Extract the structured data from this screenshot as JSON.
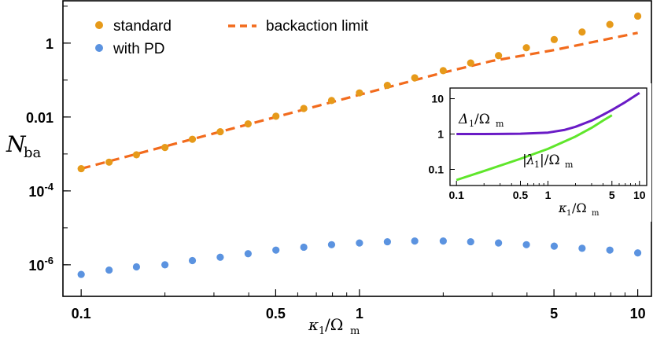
{
  "chart_data": [
    {
      "type": "scatter",
      "xscale": "log",
      "yscale": "log",
      "xlabel": "κ1/Ωm",
      "ylabel": "Nba",
      "xlim": [
        0.086,
        11.2
      ],
      "ylim": [
        1.4e-07,
        14
      ],
      "x_ticks": [
        0.1,
        0.5,
        1,
        5,
        10
      ],
      "x_tick_labels": [
        "0.1",
        "0.5",
        "1",
        "5",
        "10"
      ],
      "y_ticks": [
        1e-06,
        0.0001,
        0.01,
        1
      ],
      "y_tick_labels": [
        {
          "value": 1e-06,
          "mantissa": "10",
          "exp": "-6"
        },
        {
          "value": 0.0001,
          "mantissa": "10",
          "exp": "-4"
        },
        {
          "value": 0.01,
          "mantissa": "0.01",
          "exp": ""
        },
        {
          "value": 1,
          "mantissa": "1",
          "exp": ""
        }
      ],
      "series": [
        {
          "name": "standard",
          "kind": "points",
          "color": "#E69A1A",
          "x": [
            0.1,
            0.126,
            0.158,
            0.2,
            0.251,
            0.316,
            0.398,
            0.501,
            0.631,
            0.794,
            1.0,
            1.26,
            1.58,
            2.0,
            2.51,
            3.16,
            3.98,
            5.01,
            6.31,
            7.94,
            10.0
          ],
          "y": [
            0.0004,
            0.0006,
            0.00095,
            0.0015,
            0.0025,
            0.004,
            0.0065,
            0.0105,
            0.017,
            0.028,
            0.045,
            0.072,
            0.115,
            0.18,
            0.29,
            0.46,
            0.75,
            1.25,
            2.0,
            3.2,
            5.4
          ]
        },
        {
          "name": "with PD",
          "kind": "points",
          "color": "#5B93E0",
          "x": [
            0.1,
            0.126,
            0.158,
            0.2,
            0.251,
            0.316,
            0.398,
            0.501,
            0.631,
            0.794,
            1.0,
            1.26,
            1.58,
            2.0,
            2.51,
            3.16,
            3.98,
            5.01,
            6.31,
            7.94,
            10.0
          ],
          "y": [
            5.5e-07,
            7.2e-07,
            8.8e-07,
            1e-06,
            1.3e-06,
            1.6e-06,
            2e-06,
            2.5e-06,
            3e-06,
            3.5e-06,
            3.9e-06,
            4.2e-06,
            4.4e-06,
            4.4e-06,
            4.2e-06,
            3.9e-06,
            3.5e-06,
            3.2e-06,
            2.8e-06,
            2.5e-06,
            2.1e-06
          ]
        },
        {
          "name": "backaction limit",
          "kind": "dashed-line",
          "color": "#F26B1D",
          "x": [
            0.1,
            0.2,
            0.5,
            1.0,
            2.0,
            3.0,
            5.0,
            10.0
          ],
          "y": [
            0.0004,
            0.0016,
            0.01,
            0.04,
            0.16,
            0.33,
            0.65,
            1.9
          ]
        }
      ],
      "legend": [
        {
          "label": "standard",
          "marker": "dot",
          "color": "#E69A1A"
        },
        {
          "label": "with PD",
          "marker": "dot",
          "color": "#5B93E0"
        },
        {
          "label": "backaction limit",
          "marker": "dash",
          "color": "#F26B1D"
        }
      ]
    },
    {
      "type": "line",
      "role": "inset",
      "xscale": "log",
      "yscale": "log",
      "xlabel": "κ1/Ωm",
      "xlim": [
        0.085,
        12
      ],
      "ylim": [
        0.035,
        20
      ],
      "x_ticks": [
        0.1,
        0.5,
        1,
        5,
        10
      ],
      "x_tick_labels": [
        "0.1",
        "0.5",
        "1",
        "5",
        "10"
      ],
      "y_ticks": [
        0.1,
        1,
        10
      ],
      "y_tick_labels": [
        "0.1",
        "1",
        "10"
      ],
      "series": [
        {
          "name": "Δ1/Ωm",
          "color": "#6A1BC6",
          "x": [
            0.1,
            0.2,
            0.5,
            1,
            1.5,
            2,
            3,
            4,
            5,
            7,
            10
          ],
          "y": [
            1.0,
            1.0,
            1.02,
            1.1,
            1.3,
            1.6,
            2.4,
            3.5,
            4.8,
            8.0,
            14.5
          ]
        },
        {
          "name": "|λ1|/Ωm",
          "color": "#5FE62B",
          "x": [
            0.1,
            0.2,
            0.5,
            1,
            2,
            3,
            4,
            5
          ],
          "y": [
            0.05,
            0.09,
            0.2,
            0.38,
            0.85,
            1.5,
            2.4,
            3.4
          ]
        }
      ],
      "annotations": [
        "Δ1/Ωm",
        "|λ1|/Ωm"
      ]
    }
  ]
}
